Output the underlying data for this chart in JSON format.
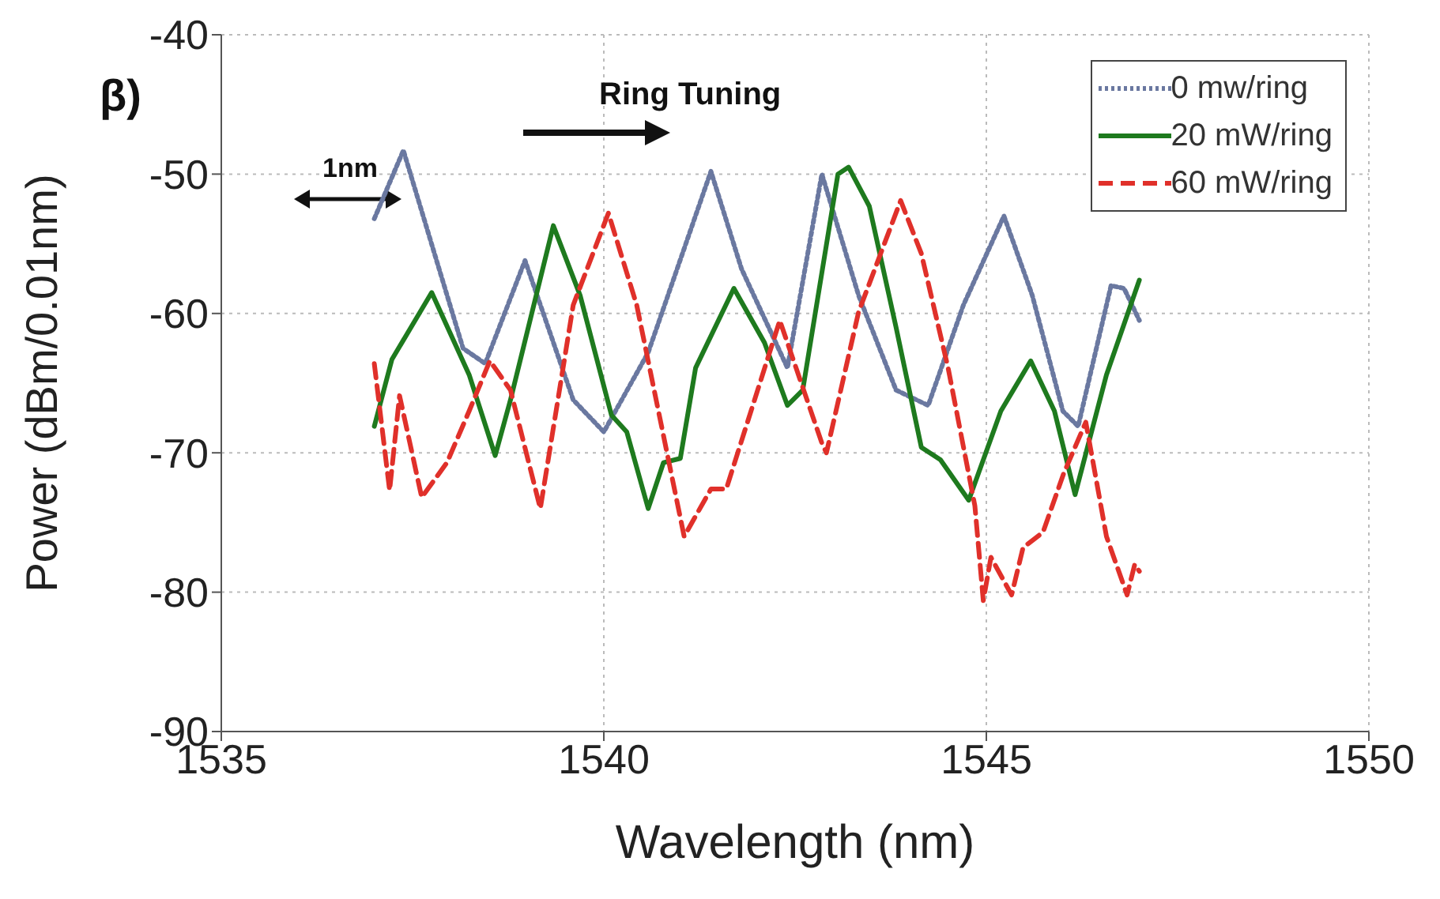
{
  "chart_data": {
    "type": "line",
    "xlabel": "Wavelength (nm)",
    "ylabel": "Power (dBm/0.01nm)",
    "xlim": [
      1535,
      1550
    ],
    "xticks": [
      1535,
      1540,
      1545,
      1550
    ],
    "ylim": [
      -90,
      -40
    ],
    "yticks": [
      -90,
      -80,
      -70,
      -60,
      -50,
      -40
    ],
    "grid": true,
    "legend": "top right",
    "marker": "none",
    "annotations": [
      "β)",
      "1nm",
      "Ring Tuning"
    ],
    "series": [
      {
        "name": "0 mw/ring",
        "color": "#6a78a0",
        "line_style": "dotted",
        "x": [
          1537.0,
          1537.38,
          1538.16,
          1538.45,
          1538.97,
          1539.6,
          1540.0,
          1540.58,
          1541.4,
          1541.8,
          1542.4,
          1542.85,
          1543.33,
          1543.82,
          1544.24,
          1544.7,
          1545.23,
          1545.6,
          1546.0,
          1546.2,
          1546.63,
          1546.8,
          1547.0
        ],
        "values": [
          -53.2,
          -48.3,
          -62.5,
          -63.6,
          -56.2,
          -66.2,
          -68.5,
          -62.8,
          -49.8,
          -56.8,
          -63.9,
          -50,
          -58.7,
          -65.5,
          -66.6,
          -59.4,
          -53,
          -58.7,
          -67,
          -68.1,
          -58,
          -58.2,
          -60.5
        ]
      },
      {
        "name": "20 mW/ring",
        "color": "#1e7a1e",
        "line_style": "solid",
        "x": [
          1537.0,
          1537.23,
          1537.75,
          1538.24,
          1538.58,
          1538.78,
          1539.34,
          1539.69,
          1540.1,
          1540.3,
          1540.58,
          1540.78,
          1541.0,
          1541.2,
          1541.7,
          1542.1,
          1542.4,
          1542.6,
          1543.06,
          1543.2,
          1543.47,
          1543.82,
          1544.15,
          1544.4,
          1544.77,
          1545.19,
          1545.58,
          1545.89,
          1546.16,
          1546.57,
          1547.0
        ],
        "values": [
          -68.1,
          -63.3,
          -58.5,
          -64.4,
          -70.2,
          -66.2,
          -53.7,
          -58.7,
          -67.3,
          -68.5,
          -74,
          -70.7,
          -70.4,
          -63.9,
          -58.2,
          -62.1,
          -66.6,
          -65.5,
          -50,
          -49.5,
          -52.3,
          -61,
          -69.6,
          -70.5,
          -73.4,
          -67,
          -63.4,
          -67,
          -73,
          -64.4,
          -57.6
        ]
      },
      {
        "name": "60 mW/ring",
        "color": "#e0302a",
        "line_style": "dashed",
        "x": [
          1537.0,
          1537.2,
          1537.33,
          1537.62,
          1537.95,
          1538.24,
          1538.51,
          1538.78,
          1539.17,
          1539.6,
          1540.06,
          1540.43,
          1541.05,
          1541.4,
          1541.6,
          1542.3,
          1542.85,
          1542.91,
          1543.33,
          1543.88,
          1544.15,
          1544.5,
          1544.85,
          1544.96,
          1545.06,
          1545.33,
          1545.48,
          1545.74,
          1546.01,
          1546.3,
          1546.57,
          1546.84,
          1546.94,
          1547.0
        ],
        "values": [
          -63.6,
          -72.7,
          -65.9,
          -73.2,
          -70.7,
          -67,
          -63.4,
          -65.5,
          -74,
          -59.4,
          -52.8,
          -59.4,
          -76,
          -72.6,
          -72.6,
          -60.5,
          -69.3,
          -70,
          -59.9,
          -51.9,
          -55.7,
          -63.9,
          -73.8,
          -80.6,
          -77.5,
          -80.2,
          -76.8,
          -75.7,
          -71.5,
          -67.8,
          -76,
          -80.2,
          -78,
          -78.5
        ]
      }
    ]
  }
}
